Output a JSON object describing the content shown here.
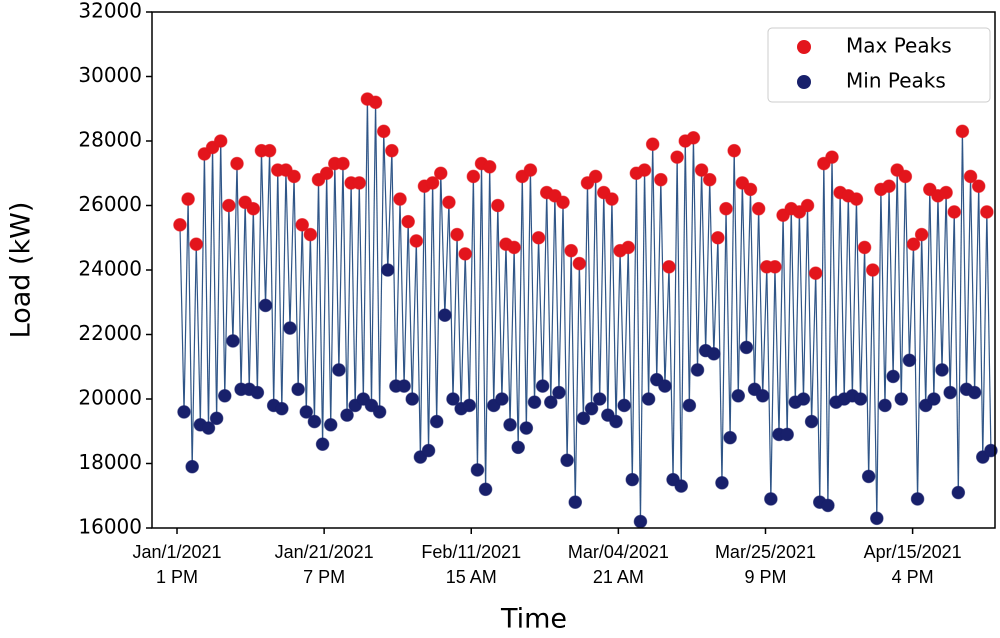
{
  "chart_data": {
    "type": "scatter",
    "xlabel": "Time",
    "ylabel": "Load (kW)",
    "xlim": [
      -17,
      556
    ],
    "ylim": [
      16000,
      32000
    ],
    "xticks": [
      {
        "value": 0,
        "label": [
          "Jan/1/2021",
          "1 PM"
        ]
      },
      {
        "value": 100,
        "label": [
          "Jan/21/2021",
          "7 PM"
        ]
      },
      {
        "value": 200,
        "label": [
          "Feb/11/2021",
          "15 AM"
        ]
      },
      {
        "value": 300,
        "label": [
          "Mar/04/2021",
          "21 AM"
        ]
      },
      {
        "value": 400,
        "label": [
          "Mar/25/2021",
          "9 PM"
        ]
      },
      {
        "value": 500,
        "label": [
          "Apr/15/2021",
          "4 PM"
        ]
      }
    ],
    "yticks": [
      16000,
      18000,
      20000,
      22000,
      24000,
      26000,
      28000,
      30000,
      32000
    ],
    "legend": "upper right",
    "line_color": "#2f5587",
    "x_start": 2,
    "x_step": 5.54,
    "series": [
      {
        "name": "Max Peaks",
        "color": "#e3151c",
        "values": [
          25400,
          26200,
          24800,
          27600,
          27800,
          28000,
          26000,
          27300,
          26100,
          25900,
          27700,
          27700,
          27100,
          27100,
          26900,
          25400,
          25100,
          26800,
          27000,
          27300,
          27300,
          26700,
          26700,
          29300,
          29200,
          28300,
          27700,
          26200,
          25500,
          24900,
          26600,
          26700,
          27000,
          26100,
          25100,
          24500,
          26900,
          27300,
          27200,
          26000,
          24800,
          24700,
          26900,
          27100,
          25000,
          26400,
          26300,
          26100,
          24600,
          24200,
          26700,
          26900,
          26400,
          26200,
          24600,
          24700,
          27000,
          27100,
          27900,
          26800,
          24100,
          27500,
          28000,
          28100,
          27100,
          26800,
          25000,
          25900,
          27700,
          26700,
          26500,
          25900,
          24100,
          24100,
          25700,
          25900,
          25800,
          26000,
          23900,
          27300,
          27500,
          26400,
          26300,
          26200,
          24700,
          24000,
          26500,
          26600,
          27100,
          26900,
          24800,
          25100,
          26500,
          26300,
          26400,
          25800,
          28300,
          26900,
          26600,
          25800
        ]
      },
      {
        "name": "Min Peaks",
        "color": "#18206b",
        "values": [
          19600,
          17900,
          19200,
          19100,
          19400,
          20100,
          21800,
          20300,
          20300,
          20200,
          22900,
          19800,
          19700,
          22200,
          20300,
          19600,
          19300,
          18600,
          19200,
          20900,
          19500,
          19800,
          20000,
          19800,
          19600,
          24000,
          20400,
          20400,
          20000,
          18200,
          18400,
          19300,
          22600,
          20000,
          19700,
          19800,
          17800,
          17200,
          19800,
          20000,
          19200,
          18500,
          19100,
          19900,
          20400,
          19900,
          20200,
          18100,
          16800,
          19400,
          19700,
          20000,
          19500,
          19300,
          19800,
          17500,
          16200,
          20000,
          20600,
          20400,
          17500,
          17300,
          19800,
          20900,
          21500,
          21400,
          17400,
          18800,
          20100,
          21600,
          20300,
          20100,
          16900,
          18900,
          18900,
          19900,
          20000,
          19300,
          16800,
          16700,
          19900,
          20000,
          20100,
          20000,
          17600,
          16300,
          19800,
          20700,
          20000,
          21200,
          16900,
          19800,
          20000,
          20900,
          20200,
          17100,
          20300,
          20200,
          18200,
          18400
        ]
      }
    ]
  }
}
